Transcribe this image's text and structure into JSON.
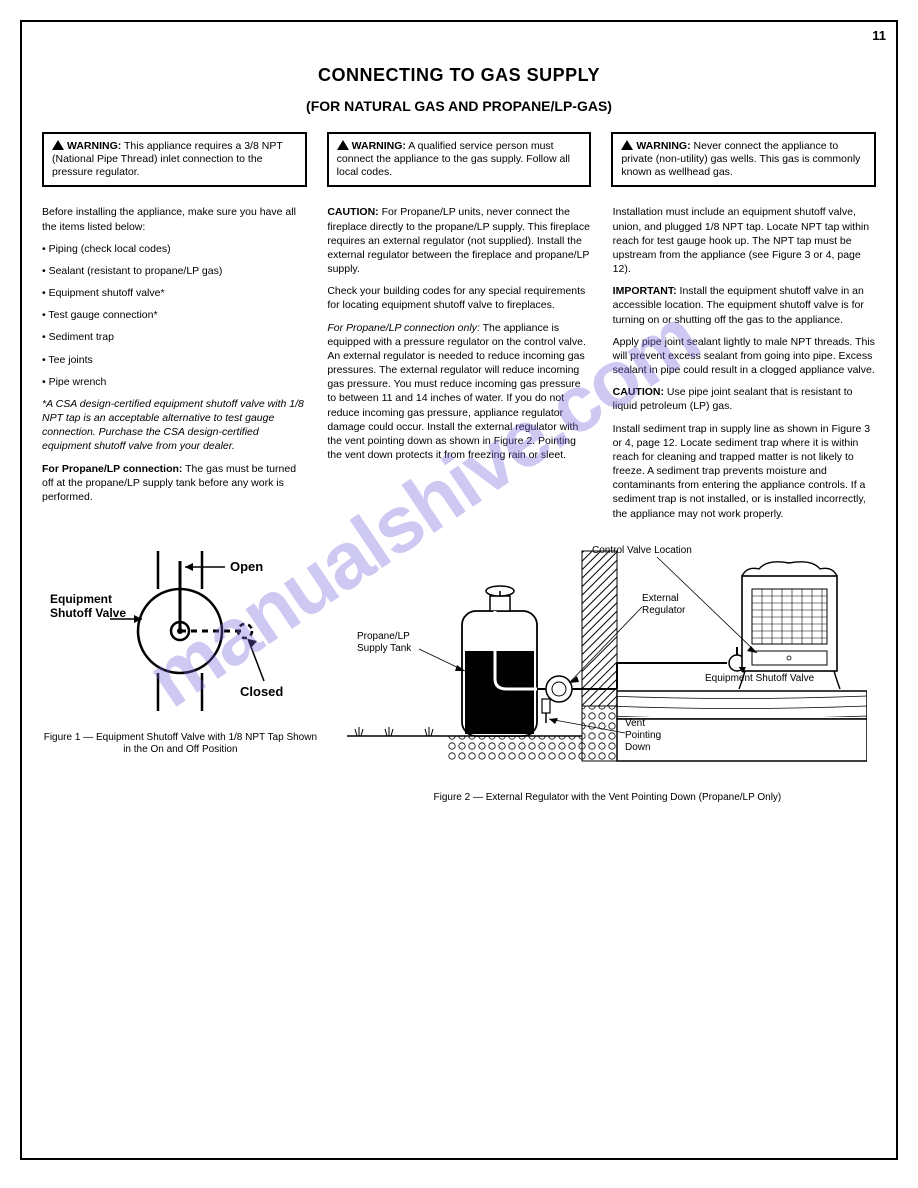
{
  "page_number": "11",
  "heading": "CONNECTING TO GAS SUPPLY",
  "subheading": "(FOR NATURAL GAS AND PROPANE/LP-GAS)",
  "watermark": "manualshive.com",
  "warnings": [
    {
      "title": "WARNING:",
      "body": "This appliance requires a 3/8 NPT (National Pipe Thread) inlet connection to the pressure regulator."
    },
    {
      "title": "WARNING:",
      "body": "A qualified service person must connect the appliance to the gas supply. Follow all local codes."
    },
    {
      "title": "WARNING:",
      "body": "Never connect the appliance to private (non-utility) gas wells. This gas is commonly known as wellhead gas."
    }
  ],
  "left_col": [
    "Before installing the appliance, make sure you have all the items listed below:",
    "• Piping (check local codes)",
    "• Sealant (resistant to propane/LP gas)",
    "• Equipment shutoff valve*",
    "• Test gauge connection*",
    "• Sediment trap",
    "• Tee joints",
    "• Pipe wrench",
    "<em>*A CSA design-certified equipment shutoff valve with 1/8 NPT tap is an acceptable alternative to test gauge connection. Purchase the CSA design-certified equipment shutoff valve from your dealer.</em>",
    "<strong>For Propane/LP connection:</strong> The gas must be turned off at the propane/LP supply tank before any work is performed."
  ],
  "mid_col": [
    "<strong>CAUTION:</strong> For Propane/LP units, never connect the fireplace directly to the propane/LP supply. This fireplace requires an external regulator (not supplied). Install the external regulator between the fireplace and propane/LP supply.",
    "Check your building codes for any special requirements for locating equipment shutoff valve to fireplaces.",
    "<em>For Propane/LP connection only:</em> The appliance is equipped with a pressure regulator on the control valve. An external regulator is needed to reduce incoming gas pressures. The external regulator will reduce incoming gas pressure. You must reduce incoming gas pressure to between 11 and 14 inches of water. If you do not reduce incoming gas pressure, appliance regulator damage could occur. Install the external regulator with the vent pointing down as shown in Figure 2. Pointing the vent down protects it from freezing rain or sleet."
  ],
  "right_col": [
    "Installation must include an equipment shutoff valve, union, and plugged 1/8 NPT tap. Locate NPT tap within reach for test gauge hook up. The NPT tap must be upstream from the appliance (see Figure 3 or 4, page 12).",
    "<strong>IMPORTANT:</strong> Install the equipment shutoff valve in an accessible location. The equipment shutoff valve is for turning on or shutting off the gas to the appliance.",
    "Apply pipe joint sealant lightly to male NPT threads. This will prevent excess sealant from going into pipe. Excess sealant in pipe could result in a clogged appliance valve.",
    "<strong>CAUTION:</strong> Use pipe joint sealant that is resistant to liquid petroleum (LP) gas.",
    "Install sediment trap in supply line as shown in Figure 3 or 4, page 12. Locate sediment trap where it is within reach for cleaning and trapped matter is not likely to freeze. A sediment trap prevents moisture and contaminants from entering the appliance controls. If a sediment trap is not installed, or is installed incorrectly, the appliance may not work properly."
  ],
  "fig1": {
    "labels": {
      "open": "Open",
      "closed": "Closed",
      "equip": "Equipment",
      "shutoff": "Shutoff Valve"
    },
    "caption": "Figure 1 — Equipment Shutoff Valve with 1/8 NPT Tap Shown in the On and Off Position"
  },
  "fig2": {
    "labels": {
      "control": "Control Valve Location",
      "tank": "Propane/LP",
      "tank2": "Supply Tank",
      "ext": "External",
      "ext2": "Regulator",
      "equip": "Equipment Shutoff Valve",
      "vent1": "Vent",
      "vent2": "Pointing",
      "vent3": "Down"
    },
    "caption": "Figure 2 — External Regulator with the Vent Pointing Down (Propane/LP Only)"
  }
}
